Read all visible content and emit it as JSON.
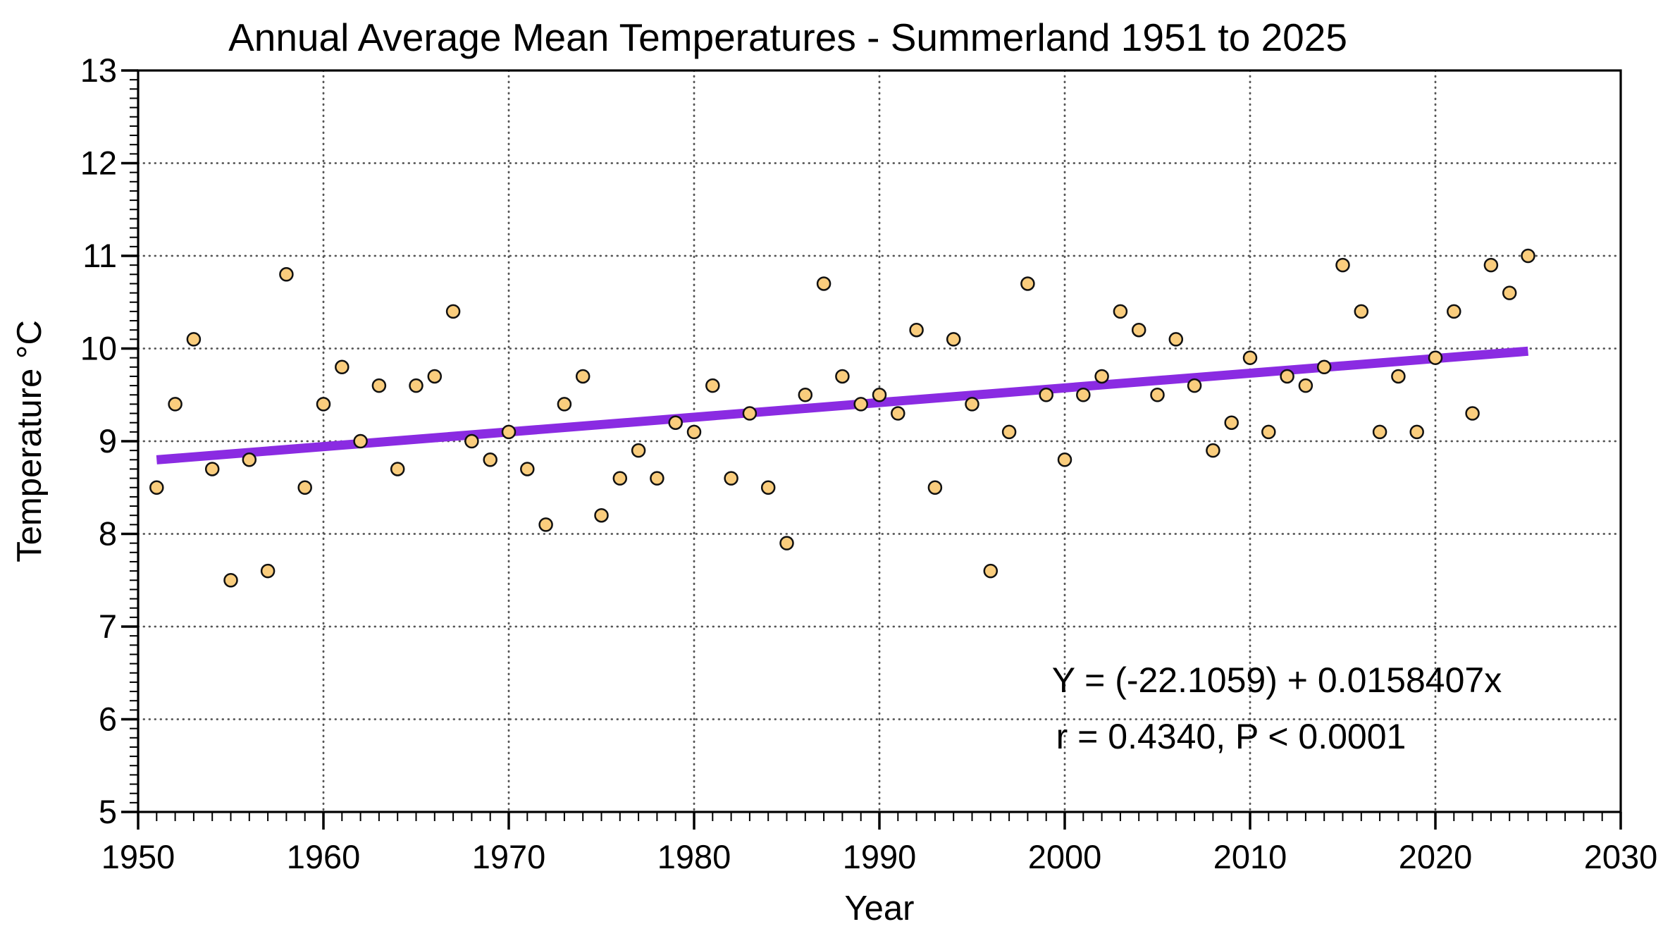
{
  "chart_data": {
    "type": "scatter",
    "title": "Annual Average Mean Temperatures - Summerland 1951 to 2025",
    "xlabel": "Year",
    "ylabel": "Temperature °C",
    "xlim": [
      1950,
      2030
    ],
    "ylim": [
      5,
      13
    ],
    "grid": "dotted, at decade years and integer temperatures",
    "x_major_ticks": [
      1950,
      1960,
      1970,
      1980,
      1990,
      2000,
      2010,
      2020,
      2030
    ],
    "x_tick_labels": [
      "1950",
      "1960",
      "1970",
      "1980",
      "1990",
      "2000",
      "2010",
      "2020",
      "2030"
    ],
    "x_minor_tick_step_years": 1,
    "y_major_ticks": [
      5,
      6,
      7,
      8,
      9,
      10,
      11,
      12,
      13
    ],
    "y_tick_labels": [
      "5",
      "6",
      "7",
      "8",
      "9",
      "10",
      "11",
      "12",
      "13"
    ],
    "y_minor_tick_step": 0.1,
    "series": [
      {
        "name": "Annual average mean temperature",
        "marker": "circle",
        "years": [
          1951,
          1952,
          1953,
          1954,
          1955,
          1956,
          1957,
          1958,
          1959,
          1960,
          1961,
          1962,
          1963,
          1964,
          1965,
          1966,
          1967,
          1968,
          1969,
          1970,
          1971,
          1972,
          1973,
          1974,
          1975,
          1976,
          1977,
          1978,
          1979,
          1980,
          1981,
          1982,
          1983,
          1984,
          1985,
          1986,
          1987,
          1988,
          1989,
          1990,
          1991,
          1992,
          1993,
          1994,
          1995,
          1996,
          1997,
          1998,
          1999,
          2000,
          2001,
          2002,
          2003,
          2004,
          2005,
          2006,
          2007,
          2008,
          2009,
          2010,
          2011,
          2012,
          2013,
          2014,
          2015,
          2016,
          2017,
          2018,
          2019,
          2020,
          2021,
          2022,
          2023,
          2024,
          2025
        ],
        "temperatures": [
          8.5,
          9.4,
          10.1,
          8.7,
          7.5,
          8.8,
          7.6,
          10.8,
          8.5,
          9.4,
          9.8,
          9.0,
          9.6,
          8.7,
          9.6,
          9.7,
          10.4,
          9.0,
          8.8,
          9.1,
          8.7,
          8.1,
          9.4,
          9.7,
          8.2,
          8.6,
          8.9,
          8.6,
          9.2,
          9.1,
          9.6,
          8.6,
          9.3,
          8.5,
          7.9,
          9.5,
          10.7,
          9.7,
          9.4,
          9.5,
          9.3,
          10.2,
          8.5,
          10.1,
          9.4,
          7.6,
          9.1,
          10.7,
          9.5,
          8.8,
          9.5,
          9.7,
          10.4,
          10.2,
          9.5,
          10.1,
          9.6,
          8.9,
          9.2,
          9.9,
          9.1,
          9.7,
          9.6,
          9.8,
          10.9,
          10.4,
          9.1,
          9.7,
          9.1,
          9.9,
          10.4,
          9.3,
          10.9,
          10.6,
          11.0
        ]
      }
    ],
    "trendline": {
      "equation": "Y = (-22.1059) + 0.0158407x",
      "stats": "r = 0.4340, P < 0.0001",
      "intercept": -22.1059,
      "slope": 0.0158407,
      "r": 0.434,
      "p": "< 0.0001",
      "x_start": 1951,
      "x_end": 2025
    },
    "style": {
      "marker_fill": "#FACD7D",
      "marker_edge": "#111111",
      "trend_color": "#8A2BE2",
      "annotation_color": "#8A2BE2",
      "grid_color": "#555555",
      "axis_color": "#000000",
      "background": "#ffffff"
    },
    "legend": "none"
  }
}
